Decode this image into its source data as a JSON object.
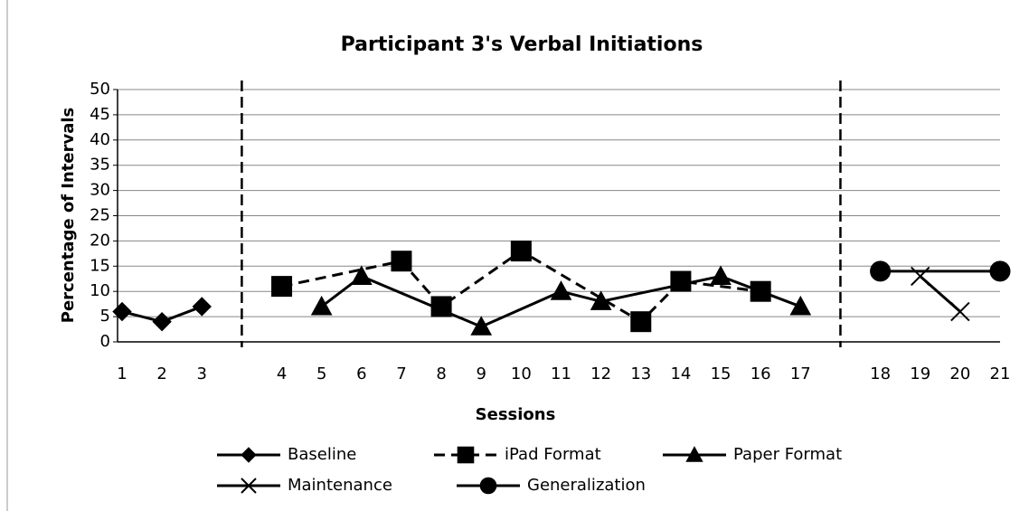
{
  "chart_data": {
    "type": "line",
    "title": "Participant 3's Verbal Initiations",
    "x_label": "Sessions",
    "y_label": "Percentage of Intervals",
    "categories": [
      "1",
      "2",
      "3",
      null,
      "4",
      "5",
      "6",
      "7",
      "8",
      "9",
      "10",
      "11",
      "12",
      "13",
      "14",
      "15",
      "16",
      "17",
      null,
      "18",
      "19",
      "20",
      "21"
    ],
    "ylim": [
      0,
      50
    ],
    "yticks": [
      0,
      5,
      10,
      15,
      20,
      25,
      30,
      35,
      40,
      45,
      50
    ],
    "grid": true,
    "legend": "bottom",
    "series": [
      {
        "name": "Baseline",
        "color": "#000000",
        "marker": "diamond",
        "dash": false,
        "x": [
          "1",
          "2",
          "3"
        ],
        "values": [
          6,
          4,
          7
        ]
      },
      {
        "name": "iPad Format",
        "color": "#000000",
        "marker": "square",
        "dash": true,
        "x": [
          "4",
          "7",
          "8",
          "10",
          "13",
          "14",
          "16"
        ],
        "values": [
          11,
          16,
          7,
          18,
          4,
          12,
          10
        ]
      },
      {
        "name": "Paper Format",
        "color": "#000000",
        "marker": "triangle",
        "dash": false,
        "x": [
          "5",
          "6",
          "9",
          "11",
          "12",
          "15",
          "17"
        ],
        "values": [
          7,
          13,
          3,
          10,
          8,
          13,
          7
        ]
      },
      {
        "name": "Maintenance",
        "color": "#000000",
        "marker": "x",
        "dash": false,
        "x": [
          "19",
          "20"
        ],
        "values": [
          13,
          6
        ]
      },
      {
        "name": "Generalization",
        "color": "#000000",
        "marker": "circle",
        "dash": false,
        "x": [
          "18",
          "21"
        ],
        "values": [
          14,
          14
        ]
      }
    ]
  }
}
